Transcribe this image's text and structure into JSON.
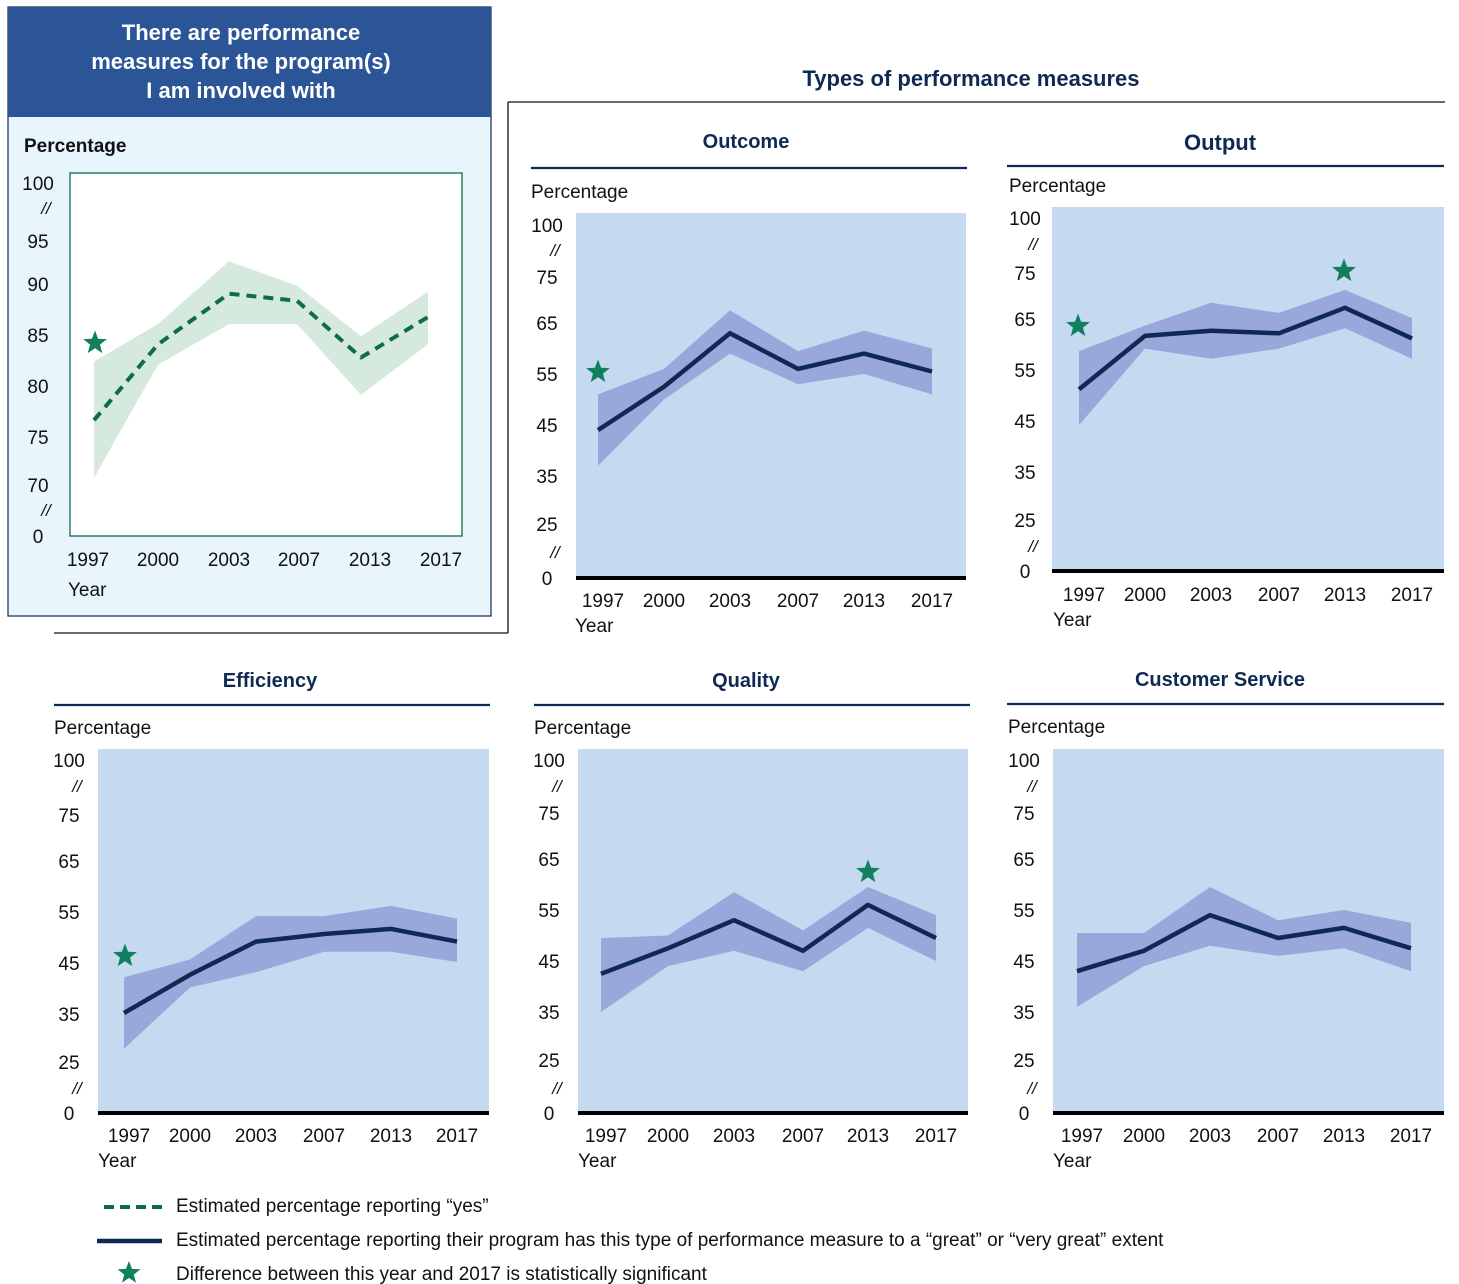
{
  "colors": {
    "navy": "#0f2a52",
    "header_blue": "#2b5597",
    "main_panel_bg": "#e8f5fc",
    "plot_blue": "#c5daf0",
    "band_blue": "#8f9fd6",
    "band_green": "#d6e9dd",
    "green": "#0f6b4f",
    "star": "#12805e"
  },
  "main_panel": {
    "title_lines": [
      "There are performance",
      "measures for the program(s)",
      "I am involved with"
    ]
  },
  "types_title": "Types of performance measures",
  "legend": {
    "dashed": "Estimated percentage reporting “yes”",
    "solid": "Estimated percentage reporting their program has this type of performance measure to a “great” or “very great” extent",
    "star": "Difference between this year and 2017 is statistically significant"
  },
  "chart_data": [
    {
      "id": "overall",
      "type": "line",
      "title": "There are performance measures for the program(s) I am involved with",
      "ylabel": "Percentage",
      "xlabel": "Year",
      "x": [
        "1997",
        "2000",
        "2003",
        "2007",
        "2013",
        "2017"
      ],
      "yticks": [
        "100",
        "95",
        "90",
        "85",
        "80",
        "75",
        "70",
        "0"
      ],
      "axis_breaks": [
        "//",
        "//"
      ],
      "series": [
        {
          "values": [
            76.5,
            84,
            89,
            88.3,
            82.7,
            86.7
          ],
          "ci_upper": [
            82.3,
            86,
            92.2,
            89.8,
            84.8,
            89.2
          ],
          "ci_lower": [
            70.8,
            82,
            86,
            86,
            79,
            84
          ],
          "style": "dashed"
        }
      ],
      "significant": [
        "1997"
      ]
    },
    {
      "id": "outcome",
      "type": "line",
      "title": "Outcome",
      "ylabel": "Percentage",
      "xlabel": "Year",
      "x": [
        "1997",
        "2000",
        "2003",
        "2007",
        "2013",
        "2017"
      ],
      "yticks": [
        "100",
        "75",
        "65",
        "55",
        "45",
        "35",
        "25",
        "0"
      ],
      "axis_breaks": [
        "//",
        "//"
      ],
      "series": [
        {
          "values": [
            44,
            52.5,
            63,
            56,
            59,
            55.5
          ],
          "ci_upper": [
            51,
            56,
            67.5,
            59.5,
            63.5,
            60
          ],
          "ci_lower": [
            37,
            50,
            59,
            53,
            55,
            51
          ],
          "style": "solid"
        }
      ],
      "significant": [
        "1997"
      ]
    },
    {
      "id": "output",
      "type": "line",
      "title": "Output",
      "ylabel": "Percentage",
      "xlabel": "Year",
      "x": [
        "1997",
        "2000",
        "2003",
        "2007",
        "2013",
        "2017"
      ],
      "yticks": [
        "100",
        "75",
        "65",
        "55",
        "45",
        "35",
        "25",
        "0"
      ],
      "axis_breaks": [
        "//",
        "//"
      ],
      "series": [
        {
          "values": [
            51,
            61.5,
            62.5,
            62,
            67,
            61
          ],
          "ci_upper": [
            58.5,
            63.5,
            68,
            66,
            70.5,
            65
          ],
          "ci_lower": [
            44,
            59,
            57,
            59,
            63,
            57
          ],
          "style": "solid"
        }
      ],
      "significant": [
        "1997",
        "2013"
      ]
    },
    {
      "id": "efficiency",
      "type": "line",
      "title": "Efficiency",
      "ylabel": "Percentage",
      "xlabel": "Year",
      "x": [
        "1997",
        "2000",
        "2003",
        "2007",
        "2013",
        "2017"
      ],
      "yticks": [
        "100",
        "75",
        "65",
        "55",
        "45",
        "35",
        "25",
        "0"
      ],
      "axis_breaks": [
        "//",
        "//"
      ],
      "series": [
        {
          "values": [
            35,
            42.5,
            49,
            50.5,
            51.5,
            49
          ],
          "ci_upper": [
            42,
            45.5,
            54,
            54,
            56,
            53.5
          ],
          "ci_lower": [
            28,
            40,
            43,
            47,
            47,
            45
          ],
          "style": "solid"
        }
      ],
      "significant": [
        "1997"
      ]
    },
    {
      "id": "quality",
      "type": "line",
      "title": "Quality",
      "ylabel": "Percentage",
      "xlabel": "Year",
      "x": [
        "1997",
        "2000",
        "2003",
        "2007",
        "2013",
        "2017"
      ],
      "yticks": [
        "100",
        "75",
        "65",
        "55",
        "45",
        "35",
        "25",
        "0"
      ],
      "axis_breaks": [
        "//",
        "//"
      ],
      "series": [
        {
          "values": [
            42.5,
            47.5,
            53,
            47,
            56,
            49.5
          ],
          "ci_upper": [
            49.5,
            50,
            58.5,
            51,
            59.5,
            54
          ],
          "ci_lower": [
            35,
            44,
            47,
            43,
            51.5,
            45
          ],
          "style": "solid"
        }
      ],
      "significant": [
        "2013"
      ]
    },
    {
      "id": "customer-service",
      "type": "line",
      "title": "Customer Service",
      "ylabel": "Percentage",
      "xlabel": "Year",
      "x": [
        "1997",
        "2000",
        "2003",
        "2007",
        "2013",
        "2017"
      ],
      "yticks": [
        "100",
        "75",
        "65",
        "55",
        "45",
        "35",
        "25",
        "0"
      ],
      "axis_breaks": [
        "//",
        "//"
      ],
      "series": [
        {
          "values": [
            43,
            47,
            54,
            49.5,
            51.5,
            47.5
          ],
          "ci_upper": [
            50.5,
            50.5,
            59.5,
            53,
            55,
            52.5
          ],
          "ci_lower": [
            36,
            44,
            48,
            46,
            47.5,
            43
          ],
          "style": "solid"
        }
      ],
      "significant": []
    }
  ]
}
